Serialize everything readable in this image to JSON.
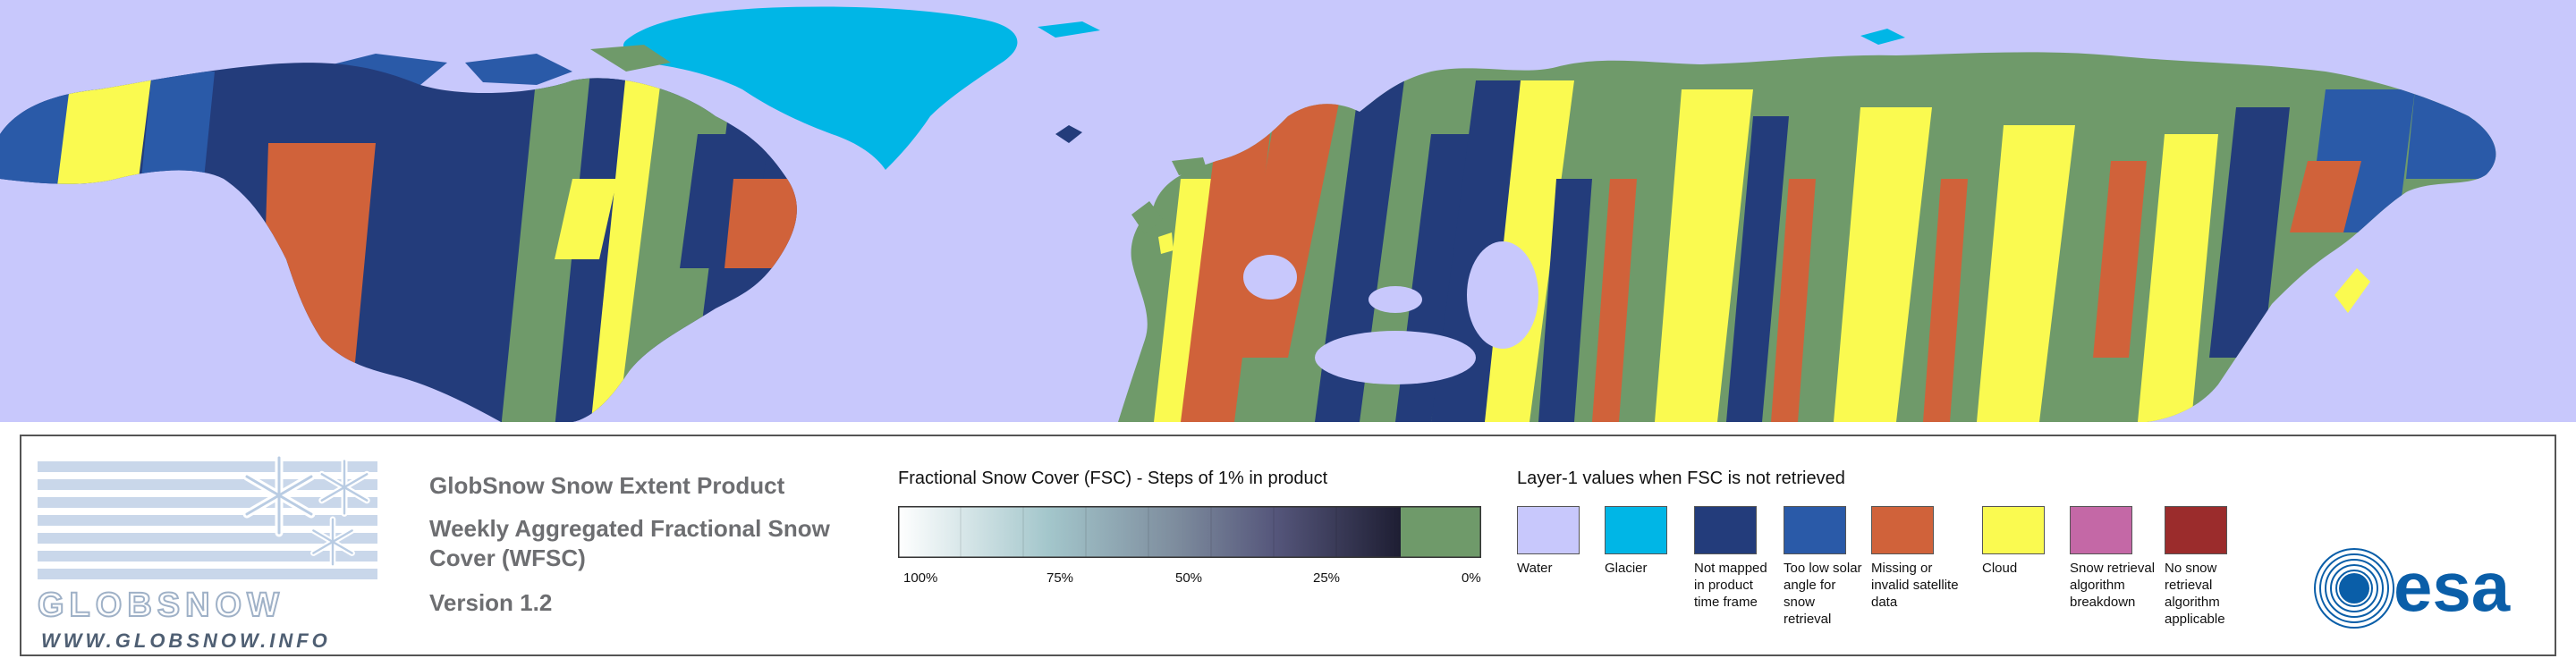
{
  "colors": {
    "water": "#c8c8fc",
    "glacier": "#00b6e6",
    "not_mapped": "#233c7b",
    "low_solar_angle": "#2a5aa8",
    "missing": "#d0623a",
    "cloud": "#fafa50",
    "breakdown": "#c468a6",
    "no_snow_applicable": "#9b2c2c",
    "snow_free_0": "#6f9a6a"
  },
  "logo": {
    "wordmark": "GLOBSNOW",
    "url": "WWW.GLOBSNOW.INFO"
  },
  "product": {
    "title": "GlobSnow Snow Extent Product",
    "subtitle": "Weekly Aggregated Fractional Snow Cover (WFSC)",
    "version": "Version 1.2"
  },
  "fsc_legend": {
    "title": "Fractional Snow Cover (FSC) - Steps of 1% in product",
    "ticks": [
      "100%",
      "75%",
      "50%",
      "25%",
      "0%"
    ]
  },
  "layer1_legend": {
    "title": "Layer-1 values when FSC is not retrieved",
    "items": [
      {
        "label": "Water",
        "color": "#c8c8fc"
      },
      {
        "label": "Glacier",
        "color": "#00b6e6"
      },
      {
        "label": "Not mapped in product time frame",
        "color": "#233c7b"
      },
      {
        "label": "Too low solar angle for snow retrieval",
        "color": "#2a5aa8"
      },
      {
        "label": "Missing or invalid satellite data",
        "color": "#d0623a"
      },
      {
        "label": "Cloud",
        "color": "#fafa50"
      },
      {
        "label": "Snow retrieval algorithm breakdown",
        "color": "#c468a6"
      },
      {
        "label": "No snow retrieval algorithm applicable",
        "color": "#9b2c2c"
      }
    ]
  },
  "esa_logo": {
    "text": "esa"
  }
}
